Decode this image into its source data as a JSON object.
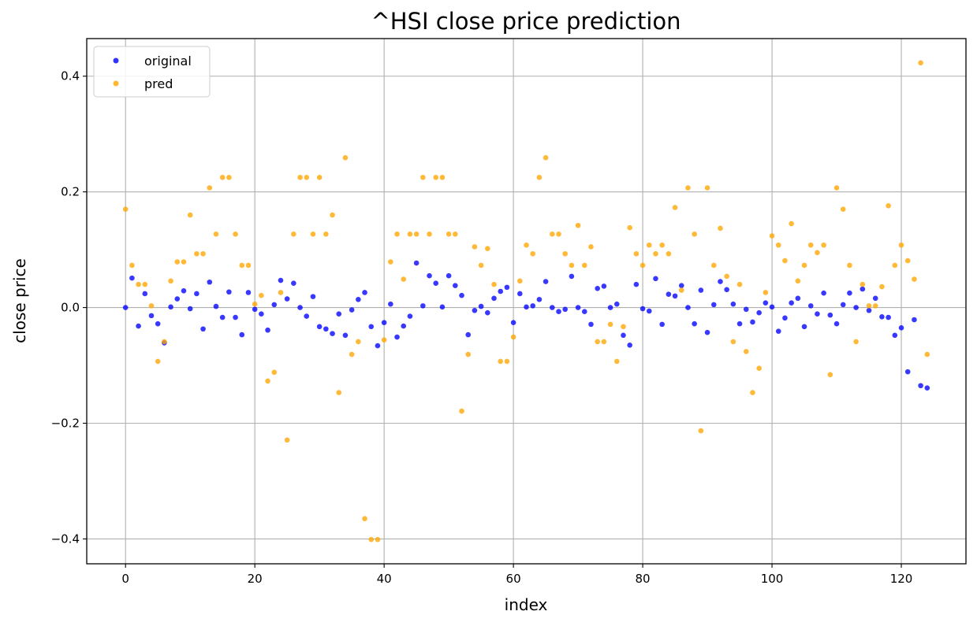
{
  "chart_data": {
    "type": "scatter",
    "title": "^HSI close price prediction",
    "xlabel": "index",
    "ylabel": "close price",
    "xlim": [
      -6,
      130
    ],
    "ylim": [
      -0.443,
      0.465
    ],
    "xticks": [
      0,
      20,
      40,
      60,
      80,
      100,
      120
    ],
    "yticks": [
      -0.4,
      -0.2,
      0.0,
      0.2,
      0.4
    ],
    "xtick_labels": [
      "0",
      "20",
      "40",
      "60",
      "80",
      "100",
      "120"
    ],
    "ytick_labels": [
      "−0.4",
      "−0.2",
      "0.0",
      "0.2",
      "0.4"
    ],
    "grid": true,
    "legend_position": "upper-left",
    "series": [
      {
        "name": "original",
        "color": "#0000ff",
        "x": [
          0,
          1,
          2,
          3,
          4,
          5,
          6,
          7,
          8,
          9,
          10,
          11,
          12,
          13,
          14,
          15,
          16,
          17,
          18,
          19,
          20,
          21,
          22,
          23,
          24,
          25,
          26,
          27,
          28,
          29,
          30,
          31,
          32,
          33,
          34,
          35,
          36,
          37,
          38,
          39,
          40,
          41,
          42,
          43,
          44,
          45,
          46,
          47,
          48,
          49,
          50,
          51,
          52,
          53,
          54,
          55,
          56,
          57,
          58,
          59,
          60,
          61,
          62,
          63,
          64,
          65,
          66,
          67,
          68,
          69,
          70,
          71,
          72,
          73,
          74,
          75,
          76,
          77,
          78,
          79,
          80,
          81,
          82,
          83,
          84,
          85,
          86,
          87,
          88,
          89,
          90,
          91,
          92,
          93,
          94,
          95,
          96,
          97,
          98,
          99,
          100,
          101,
          102,
          103,
          104,
          105,
          106,
          107,
          108,
          109,
          110,
          111,
          112,
          113,
          114,
          115,
          116,
          117,
          118,
          119,
          120,
          121,
          122,
          123,
          124
        ],
        "y": [
          0.0,
          0.051,
          -0.032,
          0.024,
          -0.014,
          -0.028,
          -0.061,
          0.001,
          0.015,
          0.029,
          -0.002,
          0.024,
          -0.037,
          0.044,
          0.002,
          -0.017,
          0.027,
          -0.017,
          -0.047,
          0.026,
          -0.003,
          -0.011,
          -0.039,
          0.005,
          0.047,
          0.015,
          0.042,
          0.0,
          -0.015,
          0.019,
          -0.033,
          -0.037,
          -0.045,
          -0.011,
          -0.048,
          -0.004,
          0.014,
          0.026,
          -0.033,
          -0.066,
          -0.026,
          0.006,
          -0.051,
          -0.032,
          -0.015,
          0.077,
          0.003,
          0.055,
          0.042,
          0.001,
          0.055,
          0.038,
          0.021,
          -0.047,
          -0.005,
          0.002,
          -0.009,
          0.016,
          0.028,
          0.035,
          -0.026,
          0.024,
          0.001,
          0.003,
          0.014,
          0.045,
          0.0,
          -0.007,
          -0.003,
          0.054,
          0.0,
          -0.007,
          -0.029,
          0.033,
          0.037,
          0.0,
          0.006,
          -0.048,
          -0.065,
          0.04,
          -0.002,
          -0.006,
          0.05,
          -0.029,
          0.023,
          0.02,
          0.038,
          0.0,
          -0.028,
          0.03,
          -0.043,
          0.005,
          0.045,
          0.031,
          0.006,
          -0.028,
          -0.003,
          -0.025,
          -0.009,
          0.008,
          0.001,
          -0.041,
          -0.018,
          0.008,
          0.016,
          -0.033,
          0.003,
          -0.011,
          0.025,
          -0.013,
          -0.028,
          0.005,
          0.025,
          0.0,
          0.032,
          -0.005,
          0.016,
          -0.016,
          -0.017,
          -0.048,
          -0.035,
          -0.111,
          -0.021,
          -0.135,
          -0.139
        ]
      },
      {
        "name": "pred",
        "color": "#ffa500",
        "x": [
          0,
          1,
          2,
          3,
          4,
          5,
          6,
          7,
          8,
          9,
          10,
          11,
          12,
          13,
          14,
          15,
          16,
          17,
          18,
          19,
          20,
          21,
          22,
          23,
          24,
          25,
          26,
          27,
          28,
          29,
          30,
          31,
          32,
          33,
          34,
          35,
          36,
          37,
          38,
          39,
          40,
          41,
          42,
          43,
          44,
          45,
          46,
          47,
          48,
          49,
          50,
          51,
          52,
          53,
          54,
          55,
          56,
          57,
          58,
          59,
          60,
          61,
          62,
          63,
          64,
          65,
          66,
          67,
          68,
          69,
          70,
          71,
          72,
          73,
          74,
          75,
          76,
          77,
          78,
          79,
          80,
          81,
          82,
          83,
          84,
          85,
          86,
          87,
          88,
          89,
          90,
          91,
          92,
          93,
          94,
          95,
          96,
          97,
          98,
          99,
          100,
          101,
          102,
          103,
          104,
          105,
          106,
          107,
          108,
          109,
          110,
          111,
          112,
          113,
          114,
          115,
          116,
          117,
          118,
          119,
          120,
          121,
          122,
          123,
          124
        ],
        "y": [
          0.17,
          0.073,
          0.04,
          0.04,
          0.003,
          -0.093,
          -0.059,
          0.046,
          0.079,
          0.079,
          0.16,
          0.093,
          0.093,
          0.207,
          0.127,
          0.225,
          0.225,
          0.127,
          0.073,
          0.073,
          0.006,
          0.021,
          -0.127,
          -0.112,
          0.026,
          -0.229,
          0.127,
          0.225,
          0.225,
          0.127,
          0.225,
          0.127,
          0.16,
          -0.147,
          0.259,
          -0.081,
          -0.059,
          -0.365,
          -0.401,
          -0.401,
          -0.056,
          0.079,
          0.127,
          0.049,
          0.127,
          0.127,
          0.225,
          0.127,
          0.225,
          0.225,
          0.127,
          0.127,
          -0.179,
          -0.081,
          0.105,
          0.073,
          0.102,
          0.04,
          -0.093,
          -0.093,
          -0.051,
          0.046,
          0.108,
          0.093,
          0.225,
          0.259,
          0.127,
          0.127,
          0.093,
          0.073,
          0.142,
          0.073,
          0.105,
          -0.059,
          -0.059,
          -0.029,
          -0.093,
          -0.033,
          0.138,
          0.093,
          0.073,
          0.108,
          0.093,
          0.108,
          0.093,
          0.173,
          0.03,
          0.207,
          0.127,
          -0.213,
          0.207,
          0.073,
          0.137,
          0.054,
          -0.059,
          0.04,
          -0.076,
          -0.147,
          -0.105,
          0.026,
          0.124,
          0.108,
          0.081,
          0.145,
          0.046,
          0.073,
          0.108,
          0.095,
          0.108,
          -0.116,
          0.207,
          0.17,
          0.073,
          -0.059,
          0.04,
          0.003,
          0.003,
          0.036,
          0.176,
          0.073,
          0.108,
          0.081,
          0.049,
          0.423,
          -0.081
        ]
      }
    ]
  }
}
